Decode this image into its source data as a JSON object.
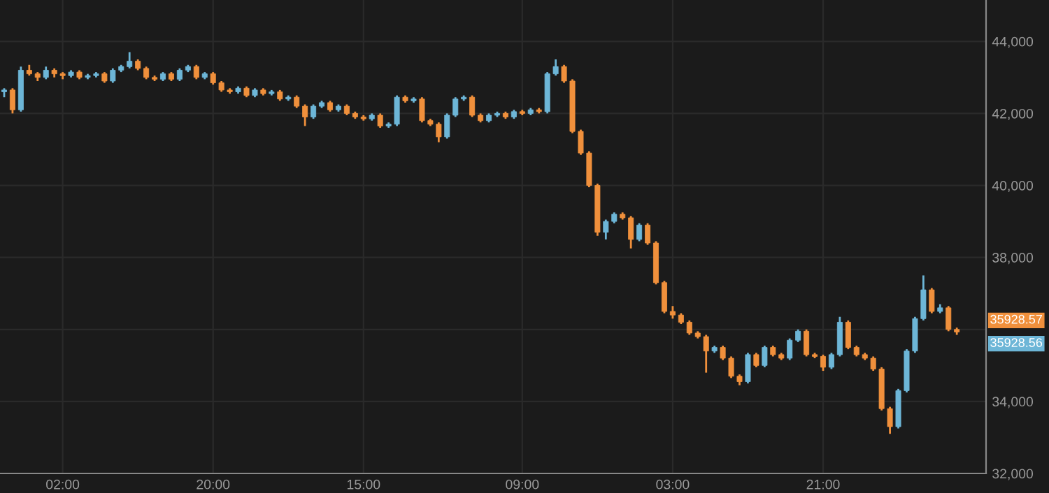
{
  "chart_data": {
    "type": "candlestick",
    "categories": [
      null,
      null,
      null,
      null,
      null,
      null,
      null,
      "02:00",
      null,
      null,
      null,
      null,
      null,
      null,
      null,
      null,
      null,
      null,
      null,
      null,
      null,
      null,
      null,
      null,
      null,
      "20:00",
      null,
      null,
      null,
      null,
      null,
      null,
      null,
      null,
      null,
      null,
      null,
      null,
      null,
      null,
      null,
      null,
      null,
      "15:00",
      null,
      null,
      null,
      null,
      null,
      null,
      null,
      null,
      null,
      null,
      null,
      null,
      null,
      null,
      null,
      null,
      null,
      null,
      "09:00",
      null,
      null,
      null,
      null,
      null,
      null,
      null,
      null,
      null,
      null,
      null,
      null,
      null,
      null,
      null,
      null,
      null,
      "03:00",
      null,
      null,
      null,
      null,
      null,
      null,
      null,
      null,
      null,
      null,
      null,
      null,
      null,
      null,
      null,
      null,
      null,
      "21:00",
      null,
      null,
      null,
      null,
      null,
      null,
      null,
      null,
      null,
      null,
      null,
      null,
      null,
      null,
      null,
      null
    ],
    "ohlc": [
      [
        42600,
        42700,
        42450,
        42650
      ],
      [
        42650,
        42700,
        42000,
        42100
      ],
      [
        42100,
        43300,
        42050,
        43200
      ],
      [
        43200,
        43350,
        43050,
        43100
      ],
      [
        43100,
        43150,
        42900,
        43000
      ],
      [
        43000,
        43300,
        42950,
        43200
      ],
      [
        43200,
        43250,
        43000,
        43100
      ],
      [
        43100,
        43150,
        42950,
        43050
      ],
      [
        43050,
        43200,
        43000,
        43150
      ],
      [
        43150,
        43200,
        42950,
        43000
      ],
      [
        43000,
        43100,
        42950,
        43050
      ],
      [
        43050,
        43150,
        43000,
        43100
      ],
      [
        43100,
        43150,
        42850,
        42900
      ],
      [
        42900,
        43250,
        42850,
        43200
      ],
      [
        43200,
        43350,
        43150,
        43300
      ],
      [
        43300,
        43700,
        43250,
        43450
      ],
      [
        43450,
        43500,
        43200,
        43250
      ],
      [
        43250,
        43300,
        42950,
        43000
      ],
      [
        43000,
        43050,
        42900,
        42950
      ],
      [
        42950,
        43150,
        42900,
        43100
      ],
      [
        43100,
        43150,
        42900,
        42950
      ],
      [
        42950,
        43250,
        42900,
        43200
      ],
      [
        43200,
        43350,
        43150,
        43300
      ],
      [
        43300,
        43350,
        42950,
        43000
      ],
      [
        43000,
        43150,
        42950,
        43100
      ],
      [
        43100,
        43150,
        42800,
        42850
      ],
      [
        42850,
        42900,
        42600,
        42650
      ],
      [
        42650,
        42700,
        42550,
        42600
      ],
      [
        42600,
        42750,
        42550,
        42700
      ],
      [
        42700,
        42750,
        42450,
        42500
      ],
      [
        42500,
        42700,
        42450,
        42650
      ],
      [
        42650,
        42700,
        42500,
        42550
      ],
      [
        42550,
        42650,
        42500,
        42600
      ],
      [
        42600,
        42650,
        42350,
        42400
      ],
      [
        42400,
        42500,
        42350,
        42450
      ],
      [
        42450,
        42500,
        42150,
        42200
      ],
      [
        42200,
        42250,
        41650,
        41900
      ],
      [
        41900,
        42250,
        41850,
        42200
      ],
      [
        42200,
        42350,
        42150,
        42300
      ],
      [
        42300,
        42350,
        42050,
        42100
      ],
      [
        42100,
        42250,
        42050,
        42200
      ],
      [
        42200,
        42250,
        41950,
        42000
      ],
      [
        42000,
        42050,
        41850,
        41900
      ],
      [
        41900,
        41950,
        41800,
        41850
      ],
      [
        41850,
        42000,
        41800,
        41950
      ],
      [
        41950,
        42000,
        41600,
        41650
      ],
      [
        41650,
        41750,
        41600,
        41700
      ],
      [
        41700,
        42500,
        41650,
        42450
      ],
      [
        42450,
        42500,
        42300,
        42350
      ],
      [
        42350,
        42450,
        42300,
        42400
      ],
      [
        42400,
        42450,
        41750,
        41800
      ],
      [
        41800,
        41850,
        41650,
        41700
      ],
      [
        41700,
        41750,
        41200,
        41350
      ],
      [
        41350,
        42000,
        41300,
        41950
      ],
      [
        41950,
        42450,
        41900,
        42400
      ],
      [
        42400,
        42500,
        42350,
        42450
      ],
      [
        42450,
        42500,
        41900,
        41950
      ],
      [
        41950,
        42000,
        41750,
        41800
      ],
      [
        41800,
        42000,
        41750,
        41950
      ],
      [
        41950,
        42050,
        41900,
        42000
      ],
      [
        42000,
        42050,
        41850,
        41900
      ],
      [
        41900,
        42100,
        41850,
        42050
      ],
      [
        42050,
        42100,
        41950,
        42000
      ],
      [
        42000,
        42150,
        41950,
        42100
      ],
      [
        42100,
        42150,
        42000,
        42050
      ],
      [
        42050,
        43150,
        42000,
        43100
      ],
      [
        43100,
        43500,
        43050,
        43300
      ],
      [
        43300,
        43350,
        42850,
        42900
      ],
      [
        42900,
        42950,
        41450,
        41500
      ],
      [
        41500,
        41550,
        40850,
        40900
      ],
      [
        40900,
        40950,
        39950,
        40000
      ],
      [
        40000,
        40050,
        38600,
        38700
      ],
      [
        38700,
        39050,
        38500,
        39000
      ],
      [
        39000,
        39250,
        38950,
        39200
      ],
      [
        39200,
        39250,
        39050,
        39100
      ],
      [
        39100,
        39150,
        38250,
        38500
      ],
      [
        38500,
        38950,
        38450,
        38900
      ],
      [
        38900,
        38950,
        38350,
        38400
      ],
      [
        38400,
        38450,
        37250,
        37300
      ],
      [
        37300,
        37350,
        36450,
        36500
      ],
      [
        36500,
        36650,
        36300,
        36400
      ],
      [
        36400,
        36450,
        36150,
        36200
      ],
      [
        36200,
        36250,
        35850,
        35900
      ],
      [
        35900,
        35950,
        35750,
        35800
      ],
      [
        35800,
        35850,
        34800,
        35400
      ],
      [
        35400,
        35550,
        35350,
        35500
      ],
      [
        35500,
        35550,
        35150,
        35200
      ],
      [
        35200,
        35250,
        34650,
        34700
      ],
      [
        34700,
        34750,
        34450,
        34550
      ],
      [
        34550,
        35350,
        34500,
        35300
      ],
      [
        35300,
        35350,
        34950,
        35000
      ],
      [
        35000,
        35550,
        34950,
        35500
      ],
      [
        35500,
        35550,
        35250,
        35300
      ],
      [
        35300,
        35350,
        35150,
        35200
      ],
      [
        35200,
        35750,
        35150,
        35700
      ],
      [
        35700,
        36000,
        35650,
        35950
      ],
      [
        35950,
        36000,
        35250,
        35300
      ],
      [
        35300,
        35350,
        35200,
        35250
      ],
      [
        35250,
        35300,
        34850,
        34950
      ],
      [
        34950,
        35350,
        34900,
        35300
      ],
      [
        35300,
        36350,
        35250,
        36200
      ],
      [
        36200,
        36250,
        35450,
        35500
      ],
      [
        35500,
        35550,
        35250,
        35300
      ],
      [
        35300,
        35350,
        35150,
        35200
      ],
      [
        35200,
        35250,
        34850,
        34900
      ],
      [
        34900,
        34950,
        33750,
        33800
      ],
      [
        33800,
        33850,
        33100,
        33300
      ],
      [
        33300,
        34350,
        33250,
        34300
      ],
      [
        34300,
        35450,
        34250,
        35400
      ],
      [
        35400,
        36350,
        35350,
        36300
      ],
      [
        36300,
        37500,
        36250,
        37100
      ],
      [
        37100,
        37150,
        36450,
        36500
      ],
      [
        36500,
        36700,
        36450,
        36600
      ],
      [
        36600,
        36650,
        35950,
        36000
      ],
      [
        36000,
        36050,
        35850,
        35929
      ]
    ],
    "colors": [
      "#6db6d7",
      "#f0903c",
      "#6db6d7",
      "#f0903c",
      "#f0903c",
      "#6db6d7",
      "#f0903c",
      "#f0903c",
      "#6db6d7",
      "#f0903c",
      "#6db6d7",
      "#6db6d7",
      "#f0903c",
      "#6db6d7",
      "#6db6d7",
      "#6db6d7",
      "#f0903c",
      "#f0903c",
      "#f0903c",
      "#6db6d7",
      "#f0903c",
      "#6db6d7",
      "#6db6d7",
      "#f0903c",
      "#6db6d7",
      "#f0903c",
      "#f0903c",
      "#f0903c",
      "#6db6d7",
      "#f0903c",
      "#6db6d7",
      "#f0903c",
      "#6db6d7",
      "#f0903c",
      "#6db6d7",
      "#f0903c",
      "#f0903c",
      "#6db6d7",
      "#6db6d7",
      "#f0903c",
      "#6db6d7",
      "#f0903c",
      "#f0903c",
      "#f0903c",
      "#6db6d7",
      "#f0903c",
      "#6db6d7",
      "#6db6d7",
      "#f0903c",
      "#6db6d7",
      "#f0903c",
      "#f0903c",
      "#f0903c",
      "#6db6d7",
      "#6db6d7",
      "#6db6d7",
      "#f0903c",
      "#f0903c",
      "#6db6d7",
      "#6db6d7",
      "#f0903c",
      "#6db6d7",
      "#f0903c",
      "#6db6d7",
      "#f0903c",
      "#6db6d7",
      "#6db6d7",
      "#f0903c",
      "#f0903c",
      "#f0903c",
      "#f0903c",
      "#f0903c",
      "#6db6d7",
      "#6db6d7",
      "#f0903c",
      "#f0903c",
      "#6db6d7",
      "#f0903c",
      "#f0903c",
      "#f0903c",
      "#f0903c",
      "#f0903c",
      "#f0903c",
      "#f0903c",
      "#f0903c",
      "#6db6d7",
      "#f0903c",
      "#f0903c",
      "#f0903c",
      "#6db6d7",
      "#f0903c",
      "#6db6d7",
      "#f0903c",
      "#f0903c",
      "#6db6d7",
      "#6db6d7",
      "#f0903c",
      "#f0903c",
      "#f0903c",
      "#6db6d7",
      "#6db6d7",
      "#f0903c",
      "#f0903c",
      "#f0903c",
      "#f0903c",
      "#f0903c",
      "#f0903c",
      "#6db6d7",
      "#6db6d7",
      "#6db6d7",
      "#6db6d7",
      "#f0903c",
      "#6db6d7",
      "#f0903c",
      "#f0903c"
    ],
    "ylim": [
      32000,
      45150
    ],
    "yticks": [
      {
        "value": 32000,
        "label": "32,000"
      },
      {
        "value": 34000,
        "label": "34,000"
      },
      {
        "value": 36000,
        "label": null
      },
      {
        "value": 38000,
        "label": "38,000"
      },
      {
        "value": 40000,
        "label": "40,000"
      },
      {
        "value": 42000,
        "label": "42,000"
      },
      {
        "value": 44000,
        "label": "44,000"
      }
    ],
    "grid": true,
    "annotations": [
      "35928.57",
      "35928.56"
    ]
  }
}
